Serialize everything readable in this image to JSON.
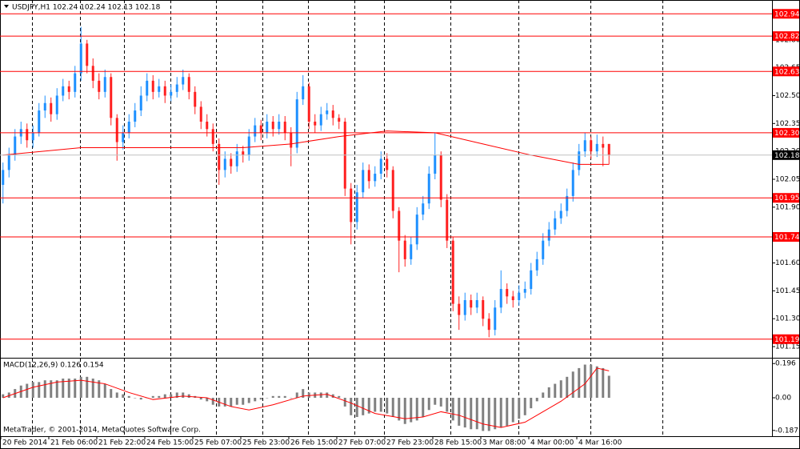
{
  "chart_data": [
    {
      "type": "candlestick",
      "title": "USDJPY,H1  102.24 102.24 102.13 102.18",
      "bull_color": "#1e90ff",
      "bear_color": "#ff2020",
      "ylim": [
        101.09,
        103.01
      ],
      "yticks": [
        {
          "value": 102.8,
          "label": "102.80"
        },
        {
          "value": 102.65,
          "label": "102.65"
        },
        {
          "value": 102.5,
          "label": "102.50"
        },
        102.35,
        {
          "value": 102.2,
          "label": "102.20"
        },
        102.05,
        {
          "value": 101.9,
          "label": "101.90"
        },
        {
          "value": 101.6,
          "label": "101.60"
        },
        101.45,
        {
          "value": 101.3,
          "label": "101.30"
        },
        101.15
      ],
      "levels": [
        102.94,
        102.82,
        102.63,
        {
          "value": 102.3,
          "label": "102.30"
        },
        101.95,
        101.74,
        101.19
      ],
      "level_color": "#ff0000",
      "last_price": 102.18,
      "ohlc": [
        [
          102.02,
          102.14,
          101.92,
          102.1
        ],
        [
          102.1,
          102.22,
          102.06,
          102.18
        ],
        [
          102.18,
          102.32,
          102.15,
          102.28
        ],
        [
          102.28,
          102.36,
          102.24,
          102.32
        ],
        [
          102.32,
          102.35,
          102.22,
          102.26
        ],
        [
          102.26,
          102.34,
          102.22,
          102.3
        ],
        [
          102.3,
          102.46,
          102.28,
          102.42
        ],
        [
          102.42,
          102.5,
          102.38,
          102.46
        ],
        [
          102.46,
          102.49,
          102.36,
          102.4
        ],
        [
          102.4,
          102.54,
          102.37,
          102.5
        ],
        [
          102.5,
          102.59,
          102.47,
          102.55
        ],
        [
          102.55,
          102.58,
          102.48,
          102.52
        ],
        [
          102.52,
          102.66,
          102.49,
          102.62
        ],
        [
          102.62,
          102.87,
          102.58,
          102.78
        ],
        [
          102.78,
          102.8,
          102.62,
          102.66
        ],
        [
          102.66,
          102.7,
          102.54,
          102.58
        ],
        [
          102.58,
          102.62,
          102.48,
          102.52
        ],
        [
          102.52,
          102.64,
          102.49,
          102.6
        ],
        [
          102.6,
          102.62,
          102.34,
          102.38
        ],
        [
          102.38,
          102.4,
          102.15,
          102.25
        ],
        [
          102.25,
          102.34,
          102.21,
          102.3
        ],
        [
          102.3,
          102.4,
          102.27,
          102.36
        ],
        [
          102.36,
          102.46,
          102.33,
          102.42
        ],
        [
          102.42,
          102.55,
          102.39,
          102.5
        ],
        [
          102.5,
          102.62,
          102.47,
          102.58
        ],
        [
          102.58,
          102.61,
          102.48,
          102.52
        ],
        [
          102.52,
          102.59,
          102.49,
          102.55
        ],
        [
          102.55,
          102.58,
          102.46,
          102.5
        ],
        [
          102.5,
          102.56,
          102.47,
          102.52
        ],
        [
          102.52,
          102.6,
          102.49,
          102.56
        ],
        [
          102.56,
          102.64,
          102.53,
          102.6
        ],
        [
          102.6,
          102.62,
          102.48,
          102.52
        ],
        [
          102.52,
          102.55,
          102.4,
          102.44
        ],
        [
          102.44,
          102.47,
          102.32,
          102.36
        ],
        [
          102.36,
          102.4,
          102.28,
          102.32
        ],
        [
          102.32,
          102.35,
          102.2,
          102.24
        ],
        [
          102.24,
          102.27,
          102.02,
          102.1
        ],
        [
          102.1,
          102.2,
          102.06,
          102.16
        ],
        [
          102.16,
          102.19,
          102.08,
          102.12
        ],
        [
          102.12,
          102.24,
          102.09,
          102.2
        ],
        [
          102.2,
          102.23,
          102.14,
          102.18
        ],
        [
          102.18,
          102.32,
          102.15,
          102.28
        ],
        [
          102.28,
          102.38,
          102.25,
          102.34
        ],
        [
          102.34,
          102.37,
          102.26,
          102.3
        ],
        [
          102.3,
          102.4,
          102.27,
          102.36
        ],
        [
          102.36,
          102.39,
          102.28,
          102.32
        ],
        [
          102.32,
          102.4,
          102.29,
          102.36
        ],
        [
          102.36,
          102.39,
          102.26,
          102.3
        ],
        [
          102.3,
          102.33,
          102.12,
          102.22
        ],
        [
          102.22,
          102.52,
          102.19,
          102.48
        ],
        [
          102.48,
          102.61,
          102.45,
          102.55
        ],
        [
          102.55,
          102.57,
          102.32,
          102.36
        ],
        [
          102.36,
          102.4,
          102.3,
          102.34
        ],
        [
          102.34,
          102.44,
          102.31,
          102.4
        ],
        [
          102.4,
          102.46,
          102.37,
          102.42
        ],
        [
          102.42,
          102.45,
          102.34,
          102.38
        ],
        [
          102.38,
          102.4,
          102.32,
          102.36
        ],
        [
          102.36,
          102.38,
          101.96,
          102.0
        ],
        [
          102.0,
          102.03,
          101.7,
          101.82
        ],
        [
          101.82,
          102.02,
          101.78,
          101.98
        ],
        [
          101.98,
          102.14,
          101.95,
          102.1
        ],
        [
          102.1,
          102.13,
          102.0,
          102.04
        ],
        [
          102.04,
          102.12,
          102.01,
          102.08
        ],
        [
          102.08,
          102.2,
          102.05,
          102.16
        ],
        [
          102.16,
          102.19,
          102.06,
          102.1
        ],
        [
          102.1,
          102.12,
          101.84,
          101.88
        ],
        [
          101.88,
          101.9,
          101.55,
          101.72
        ],
        [
          101.72,
          101.75,
          101.58,
          101.62
        ],
        [
          101.62,
          101.74,
          101.59,
          101.7
        ],
        [
          101.7,
          101.9,
          101.67,
          101.86
        ],
        [
          101.86,
          101.96,
          101.83,
          101.92
        ],
        [
          101.92,
          102.12,
          101.89,
          102.08
        ],
        [
          102.08,
          102.3,
          102.05,
          102.18
        ],
        [
          102.18,
          102.2,
          101.9,
          101.94
        ],
        [
          101.94,
          101.97,
          101.68,
          101.72
        ],
        [
          101.72,
          101.74,
          101.34,
          101.38
        ],
        [
          101.38,
          101.42,
          101.24,
          101.32
        ],
        [
          101.32,
          101.44,
          101.29,
          101.4
        ],
        [
          101.4,
          101.43,
          101.32,
          101.36
        ],
        [
          101.36,
          101.44,
          101.33,
          101.4
        ],
        [
          101.4,
          101.42,
          101.26,
          101.3
        ],
        [
          101.3,
          101.33,
          101.2,
          101.24
        ],
        [
          101.24,
          101.4,
          101.21,
          101.36
        ],
        [
          101.36,
          101.56,
          101.33,
          101.46
        ],
        [
          101.46,
          101.49,
          101.38,
          101.42
        ],
        [
          101.42,
          101.45,
          101.36,
          101.4
        ],
        [
          101.4,
          101.48,
          101.37,
          101.44
        ],
        [
          101.44,
          101.5,
          101.41,
          101.46
        ],
        [
          101.46,
          101.6,
          101.43,
          101.56
        ],
        [
          101.56,
          101.66,
          101.53,
          101.62
        ],
        [
          101.62,
          101.76,
          101.59,
          101.72
        ],
        [
          101.72,
          101.82,
          101.69,
          101.78
        ],
        [
          101.78,
          101.88,
          101.75,
          101.84
        ],
        [
          101.84,
          101.92,
          101.81,
          101.88
        ],
        [
          101.88,
          102.0,
          101.85,
          101.96
        ],
        [
          101.96,
          102.14,
          101.93,
          102.1
        ],
        [
          102.1,
          102.24,
          102.07,
          102.2
        ],
        [
          102.2,
          102.3,
          102.17,
          102.26
        ],
        [
          102.26,
          102.28,
          102.16,
          102.2
        ],
        [
          102.2,
          102.29,
          102.17,
          102.24
        ],
        [
          102.24,
          102.28,
          102.12,
          102.22
        ],
        [
          102.24,
          102.24,
          102.13,
          102.18
        ]
      ],
      "moving_average": {
        "color": "#ff0000",
        "x": [
          0,
          13,
          26,
          40,
          48,
          56,
          64,
          72,
          80,
          88,
          96,
          101
        ],
        "values": [
          102.18,
          102.22,
          102.22,
          102.22,
          102.24,
          102.28,
          102.31,
          102.3,
          102.24,
          102.18,
          102.13,
          102.13
        ]
      },
      "time_labels": [
        "20 Feb 2014",
        "21 Feb 06:00",
        "21 Feb 22:00",
        "24 Feb 15:00",
        "25 Feb 07:00",
        "25 Feb 23:00",
        "26 Feb 15:00",
        "27 Feb 07:00",
        "27 Feb 23:00",
        "28 Feb 15:00",
        "3 Mar 08:00",
        "4 Mar 00:00",
        "4 Mar 16:00"
      ]
    },
    {
      "type": "bar",
      "title": "MACD(12,26,9) 0.126 0.154",
      "ylim": [
        -0.22,
        0.22
      ],
      "yticks": [
        0.196,
        {
          "value": 0,
          "label": "0.00"
        },
        -0.187
      ],
      "series": [
        {
          "color": "#808080",
          "values": [
            0.02,
            0.03,
            0.05,
            0.07,
            0.08,
            0.09,
            0.09,
            0.1,
            0.1,
            0.1,
            0.11,
            0.11,
            0.11,
            0.12,
            0.12,
            0.11,
            0.1,
            0.08,
            0.05,
            0.03,
            0.02,
            0.01,
            0.0,
            -0.01,
            0.0,
            0.01,
            0.01,
            0.02,
            0.02,
            0.03,
            0.03,
            0.02,
            0.01,
            -0.01,
            -0.02,
            -0.04,
            -0.05,
            -0.05,
            -0.05,
            -0.04,
            -0.04,
            -0.03,
            -0.02,
            -0.01,
            0.0,
            0.01,
            0.01,
            0.01,
            0.0,
            0.03,
            0.05,
            0.03,
            0.03,
            0.03,
            0.03,
            0.02,
            0.01,
            -0.05,
            -0.1,
            -0.11,
            -0.1,
            -0.09,
            -0.08,
            -0.08,
            -0.09,
            -0.11,
            -0.13,
            -0.15,
            -0.14,
            -0.13,
            -0.11,
            -0.07,
            -0.04,
            -0.05,
            -0.08,
            -0.13,
            -0.16,
            -0.17,
            -0.18,
            -0.18,
            -0.19,
            -0.19,
            -0.18,
            -0.17,
            -0.16,
            -0.14,
            -0.12,
            -0.1,
            -0.06,
            -0.02,
            0.03,
            0.06,
            0.08,
            0.1,
            0.12,
            0.15,
            0.17,
            0.19,
            0.19,
            0.18,
            0.17,
            0.126
          ]
        }
      ],
      "signal": {
        "color": "#ff0000",
        "x": [
          0,
          5,
          9,
          13,
          17,
          21,
          25,
          30,
          34,
          38,
          41,
          45,
          50,
          54,
          58,
          62,
          67,
          70,
          73,
          76,
          80,
          83,
          87,
          90,
          93,
          97,
          99,
          101
        ],
        "values": [
          0.0,
          0.06,
          0.09,
          0.1,
          0.08,
          0.03,
          -0.01,
          0.01,
          0.0,
          -0.05,
          -0.07,
          -0.04,
          0.01,
          0.02,
          -0.03,
          -0.09,
          -0.12,
          -0.11,
          -0.08,
          -0.1,
          -0.15,
          -0.17,
          -0.14,
          -0.08,
          -0.02,
          0.08,
          0.17,
          0.154
        ]
      },
      "copyright": "MetaTrader, © 2001-2014, MetaQuotes Software Corp."
    }
  ]
}
